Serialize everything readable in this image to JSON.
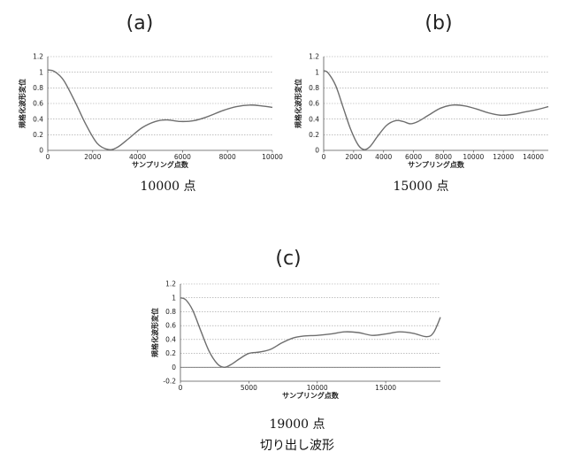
{
  "panels": {
    "a": {
      "label": "(a)",
      "caption": "10000 点"
    },
    "b": {
      "label": "(b)",
      "caption": "15000 点"
    },
    "c": {
      "label": "(c)",
      "caption": "19000 点",
      "caption2": "切り出し波形"
    }
  },
  "chart_data": [
    {
      "type": "line",
      "xlabel": "サンプリング点数",
      "ylabel": "規格化波形変位",
      "xlim": [
        0,
        10000
      ],
      "ylim": [
        0,
        1.2
      ],
      "xticks": [
        0,
        2000,
        4000,
        6000,
        8000,
        10000
      ],
      "xtick_labels": [
        "0",
        "2000",
        "4000",
        "6000",
        "8000",
        "10000"
      ],
      "yticks": [
        0,
        0.2,
        0.4,
        0.6,
        0.8,
        1,
        1.2
      ],
      "ytick_labels": [
        "0",
        "0.2",
        "0.4",
        "0.6",
        "0.8",
        "1",
        "1.2"
      ],
      "grid": "horizontal dotted",
      "series": [
        {
          "color": "#6e6e6e",
          "x": [
            0,
            300,
            700,
            1200,
            1700,
            2200,
            2700,
            3100,
            3600,
            4200,
            4800,
            5300,
            5900,
            6500,
            7100,
            7800,
            8400,
            9000,
            9500,
            10000
          ],
          "y": [
            1.03,
            1.01,
            0.9,
            0.63,
            0.33,
            0.09,
            0.01,
            0.04,
            0.15,
            0.29,
            0.37,
            0.39,
            0.37,
            0.38,
            0.43,
            0.51,
            0.56,
            0.58,
            0.57,
            0.55
          ]
        }
      ]
    },
    {
      "type": "line",
      "xlabel": "サンプリング点数",
      "ylabel": "規格化波形変位",
      "xlim": [
        0,
        15000
      ],
      "ylim": [
        0,
        1.2
      ],
      "xticks": [
        0,
        2000,
        4000,
        6000,
        8000,
        10000,
        12000,
        14000
      ],
      "xtick_labels": [
        "0",
        "2000",
        "4000",
        "6000",
        "8000",
        "10000",
        "12000",
        "14000"
      ],
      "yticks": [
        0,
        0.2,
        0.4,
        0.6,
        0.8,
        1,
        1.2
      ],
      "ytick_labels": [
        "0",
        "0.2",
        "0.4",
        "0.6",
        "0.8",
        "1",
        "1.2"
      ],
      "grid": "horizontal dotted",
      "series": [
        {
          "color": "#6e6e6e",
          "x": [
            0,
            300,
            800,
            1300,
            1800,
            2300,
            2700,
            3100,
            3600,
            4200,
            4800,
            5300,
            5800,
            6300,
            7000,
            7800,
            8600,
            9400,
            10200,
            11000,
            11800,
            12600,
            13400,
            14200,
            15000
          ],
          "y": [
            1.02,
            0.99,
            0.83,
            0.55,
            0.27,
            0.07,
            0.01,
            0.05,
            0.18,
            0.32,
            0.38,
            0.37,
            0.34,
            0.37,
            0.45,
            0.54,
            0.58,
            0.57,
            0.53,
            0.48,
            0.45,
            0.46,
            0.49,
            0.52,
            0.56
          ]
        }
      ]
    },
    {
      "type": "line",
      "xlabel": "サンプリング点数",
      "ylabel": "規格化波形変位",
      "xlim": [
        0,
        19000
      ],
      "ylim": [
        -0.2,
        1.2
      ],
      "xticks": [
        0,
        5000,
        10000,
        15000
      ],
      "xtick_labels": [
        "0",
        "5000",
        "10000",
        "15000"
      ],
      "yticks": [
        -0.2,
        0,
        0.2,
        0.4,
        0.6,
        0.8,
        1,
        1.2
      ],
      "ytick_labels": [
        "-0.2",
        "0",
        "0.2",
        "0.4",
        "0.6",
        "0.8",
        "1",
        "1.2"
      ],
      "grid": "horizontal dotted",
      "series": [
        {
          "color": "#6e6e6e",
          "x": [
            0,
            400,
            900,
            1500,
            2100,
            2700,
            3200,
            3700,
            4300,
            5000,
            5800,
            6600,
            7400,
            8200,
            9000,
            10000,
            11000,
            12000,
            13000,
            14000,
            15000,
            16000,
            17000,
            18000,
            18500,
            19000
          ],
          "y": [
            1.0,
            0.97,
            0.82,
            0.52,
            0.23,
            0.05,
            0.0,
            0.04,
            0.12,
            0.2,
            0.22,
            0.26,
            0.35,
            0.42,
            0.45,
            0.46,
            0.48,
            0.51,
            0.5,
            0.46,
            0.48,
            0.51,
            0.49,
            0.44,
            0.5,
            0.72
          ]
        }
      ]
    }
  ]
}
